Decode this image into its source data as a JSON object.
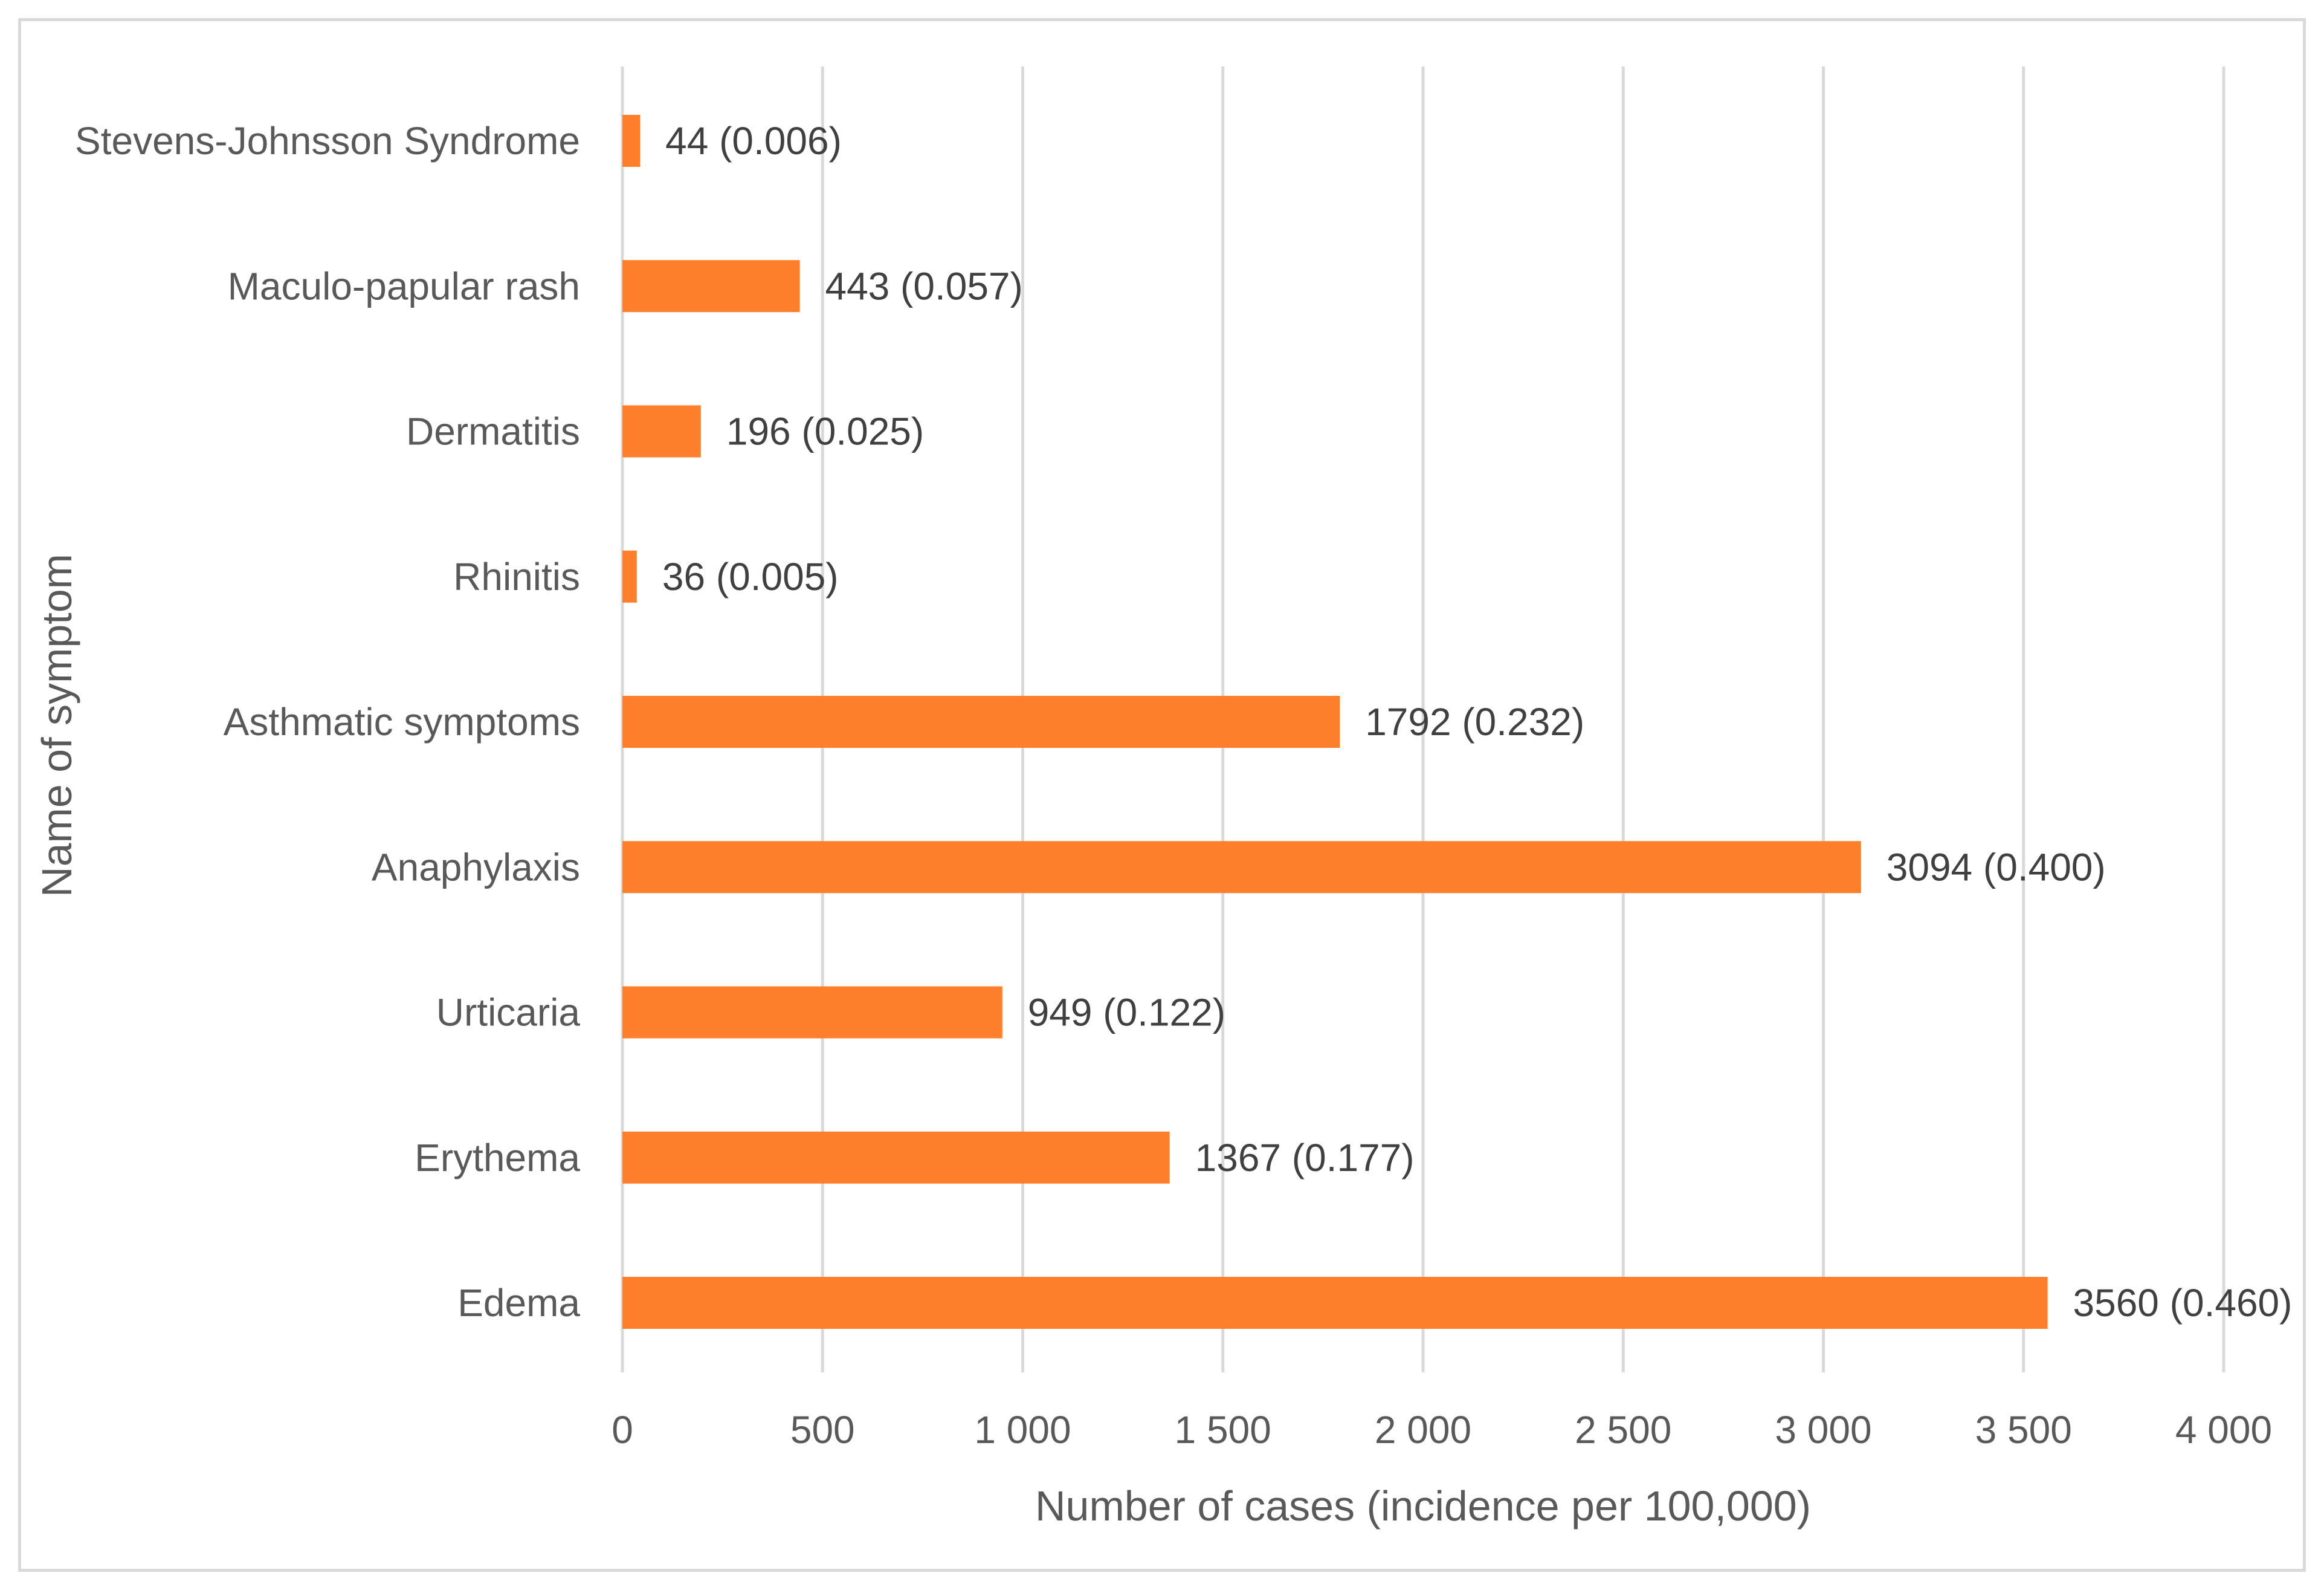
{
  "chart_data": {
    "type": "bar",
    "orientation": "horizontal",
    "categories": [
      "Stevens-Johnsson Syndrome",
      "Maculo-papular rash",
      "Dermatitis",
      "Rhinitis",
      "Asthmatic symptoms",
      "Anaphylaxis",
      "Urticaria",
      "Erythema",
      "Edema"
    ],
    "values": [
      44,
      443,
      196,
      36,
      1792,
      3094,
      949,
      1367,
      3560
    ],
    "data_labels": [
      "44 (0.006)",
      "443 (0.057)",
      "196 (0.025)",
      "36 (0.005)",
      "1792 (0.232)",
      "3094 (0.400)",
      "949 (0.122)",
      "1367 (0.177)",
      "3560 (0.460)"
    ],
    "xticks": [
      0,
      500,
      1000,
      1500,
      2000,
      2500,
      3000,
      3500,
      4000
    ],
    "xtick_labels": [
      "0",
      "500",
      "1 000",
      "1 500",
      "2 000",
      "2 500",
      "3 000",
      "3 500",
      "4 000"
    ],
    "xlim": [
      0,
      4000
    ],
    "xlabel": "Number of cases  (incidence per 100,000)",
    "ylabel": "Name of symptom",
    "title": "",
    "grid": "vertical",
    "legend": "none",
    "bar_color": "#fd7f2c",
    "grid_color": "#d9d9d9",
    "border_color": "#d9d9d9"
  }
}
